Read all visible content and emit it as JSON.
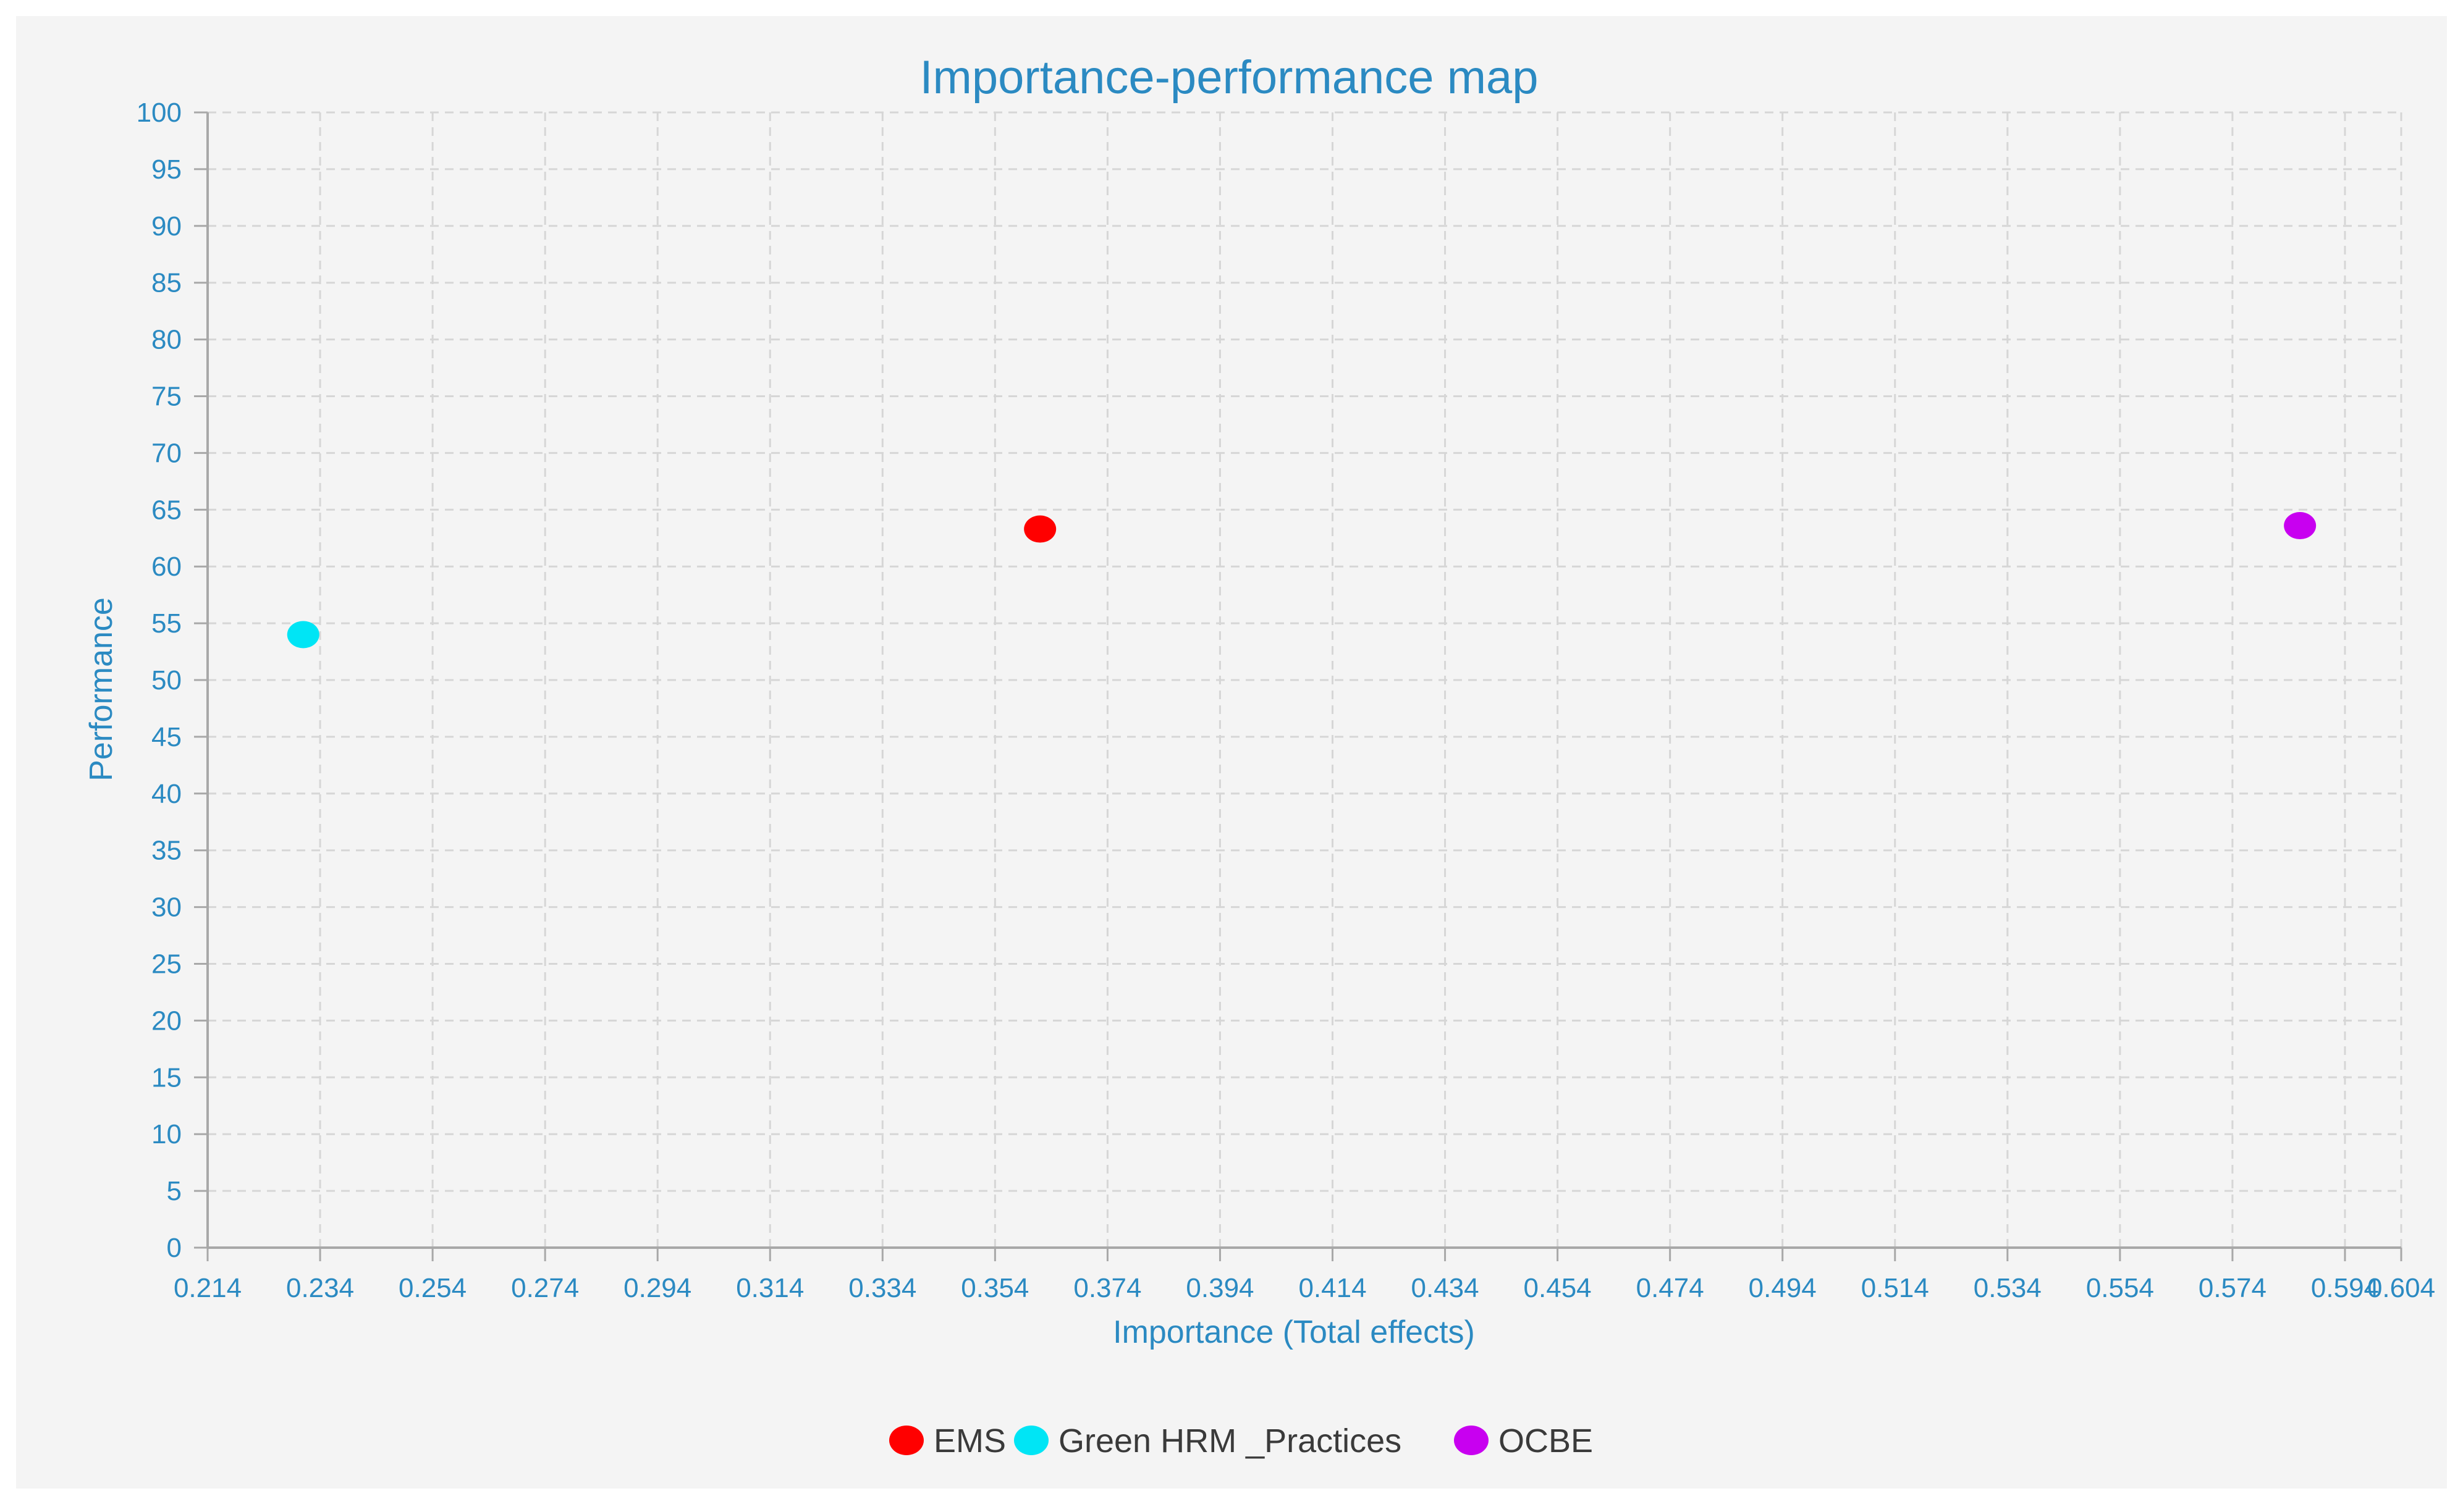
{
  "chart_data": {
    "type": "scatter",
    "title": "Importance-performance map",
    "xlabel": "Importance (Total effects)",
    "ylabel": "Performance",
    "xlim": [
      0.214,
      0.604
    ],
    "ylim": [
      0,
      100
    ],
    "x_ticks": [
      "0.214",
      "0.234",
      "0.254",
      "0.274",
      "0.294",
      "0.314",
      "0.334",
      "0.354",
      "0.374",
      "0.394",
      "0.414",
      "0.434",
      "0.454",
      "0.474",
      "0.494",
      "0.514",
      "0.534",
      "0.554",
      "0.574",
      "0.594",
      "0.604"
    ],
    "y_ticks": [
      "0",
      "5",
      "10",
      "15",
      "20",
      "25",
      "30",
      "35",
      "40",
      "45",
      "50",
      "55",
      "60",
      "65",
      "70",
      "75",
      "80",
      "85",
      "90",
      "95",
      "100"
    ],
    "grid": true,
    "legend_position": "bottom",
    "series": [
      {
        "name": "EMS",
        "color": "#ff0000",
        "x": 0.362,
        "y": 63.3
      },
      {
        "name": "Green HRM _Practices",
        "color": "#00e5f5",
        "x": 0.231,
        "y": 54.0
      },
      {
        "name": "OCBE",
        "color": "#c800f0",
        "x": 0.586,
        "y": 63.6
      }
    ]
  }
}
